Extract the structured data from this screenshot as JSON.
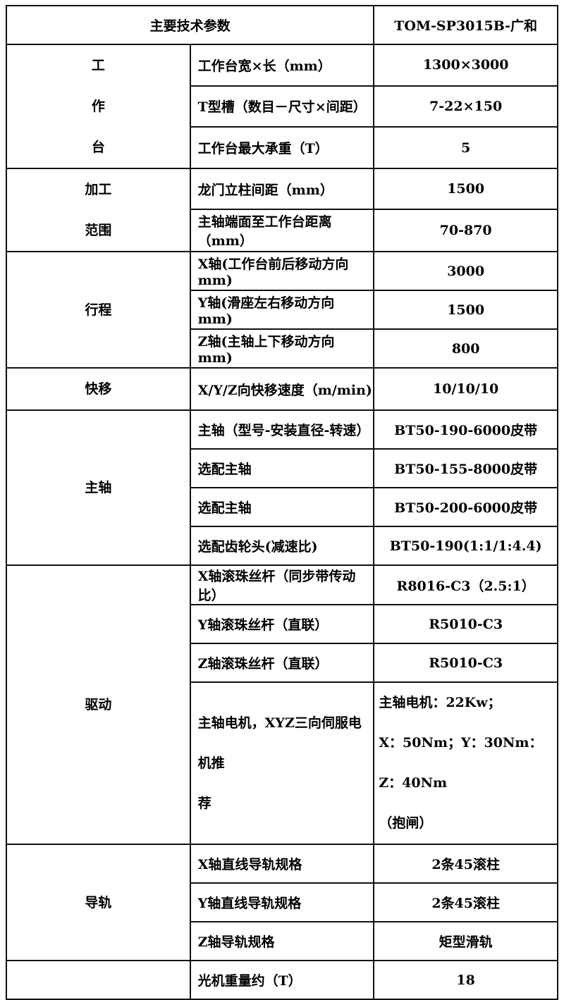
{
  "header": {
    "param": "主要技术参数",
    "model": "TOM-SP3015B-广和"
  },
  "groups": [
    {
      "category_lines": [
        "工",
        "作",
        "台"
      ],
      "rows": [
        {
          "param": "工作台宽×长（mm）",
          "value": "1300×3000"
        },
        {
          "param": "T型槽（数目－尺寸×间距）",
          "value": "7-22×150"
        },
        {
          "param": "工作台最大承重（T）",
          "value": "5"
        }
      ]
    },
    {
      "category_lines": [
        "加工",
        "范围"
      ],
      "rows": [
        {
          "param": "龙门立柱间距（mm）",
          "value": "1500"
        },
        {
          "param": "主轴端面至工作台距离（mm）",
          "value": "70-870"
        }
      ]
    },
    {
      "category_lines": [
        "行程"
      ],
      "rows": [
        {
          "param": "X轴(工作台前后移动方向 mm)",
          "value": "3000"
        },
        {
          "param": "Y轴(滑座左右移动方向 mm)",
          "value": "1500"
        },
        {
          "param": "Z轴(主轴上下移动方向 mm)",
          "value": "800"
        }
      ]
    },
    {
      "category_lines": [
        "快移"
      ],
      "rows": [
        {
          "param": "X/Y/Z向快移速度（m/min)",
          "value": "10/10/10"
        }
      ]
    },
    {
      "category_lines": [
        "主轴"
      ],
      "rows": [
        {
          "param": "主轴（型号-安装直径-转速）",
          "value": "BT50-190-6000皮带"
        },
        {
          "param": "选配主轴",
          "value": "BT50-155-8000皮带"
        },
        {
          "param": "选配主轴",
          "value": "BT50-200-6000皮带"
        },
        {
          "param": "选配齿轮头(减速比)",
          "value": "BT50-190(1:1/1:4.4)"
        }
      ]
    },
    {
      "category_lines": [
        "驱动"
      ],
      "rows": [
        {
          "param": "X轴滚珠丝杆（同步带传动比）",
          "value": "R8016-C3（2.5:1）"
        },
        {
          "param": "Y轴滚珠丝杆（直联）",
          "value": "R5010-C3"
        },
        {
          "param": "Z轴滚珠丝杆（直联）",
          "value": "R5010-C3"
        }
      ],
      "motor_row": {
        "param_lines": [
          "主轴电机，XYZ三向伺服电机推",
          "荐"
        ],
        "value_lines": [
          "主轴电机：22Kw；",
          "X：50Nm；Y：30Nm：Z：40Nm",
          "（抱闸）"
        ]
      }
    },
    {
      "category_lines": [
        "导轨"
      ],
      "rows": [
        {
          "param": "X轴直线导轨规格",
          "value": "2条45滚柱"
        },
        {
          "param": "Y轴直线导轨规格",
          "value": "2条45滚柱"
        },
        {
          "param": "Z轴导轨规格",
          "value": "矩型滑轨"
        }
      ]
    },
    {
      "category_lines": [],
      "rows": [
        {
          "param": "光机重量约（T）",
          "value": "18"
        }
      ]
    }
  ]
}
